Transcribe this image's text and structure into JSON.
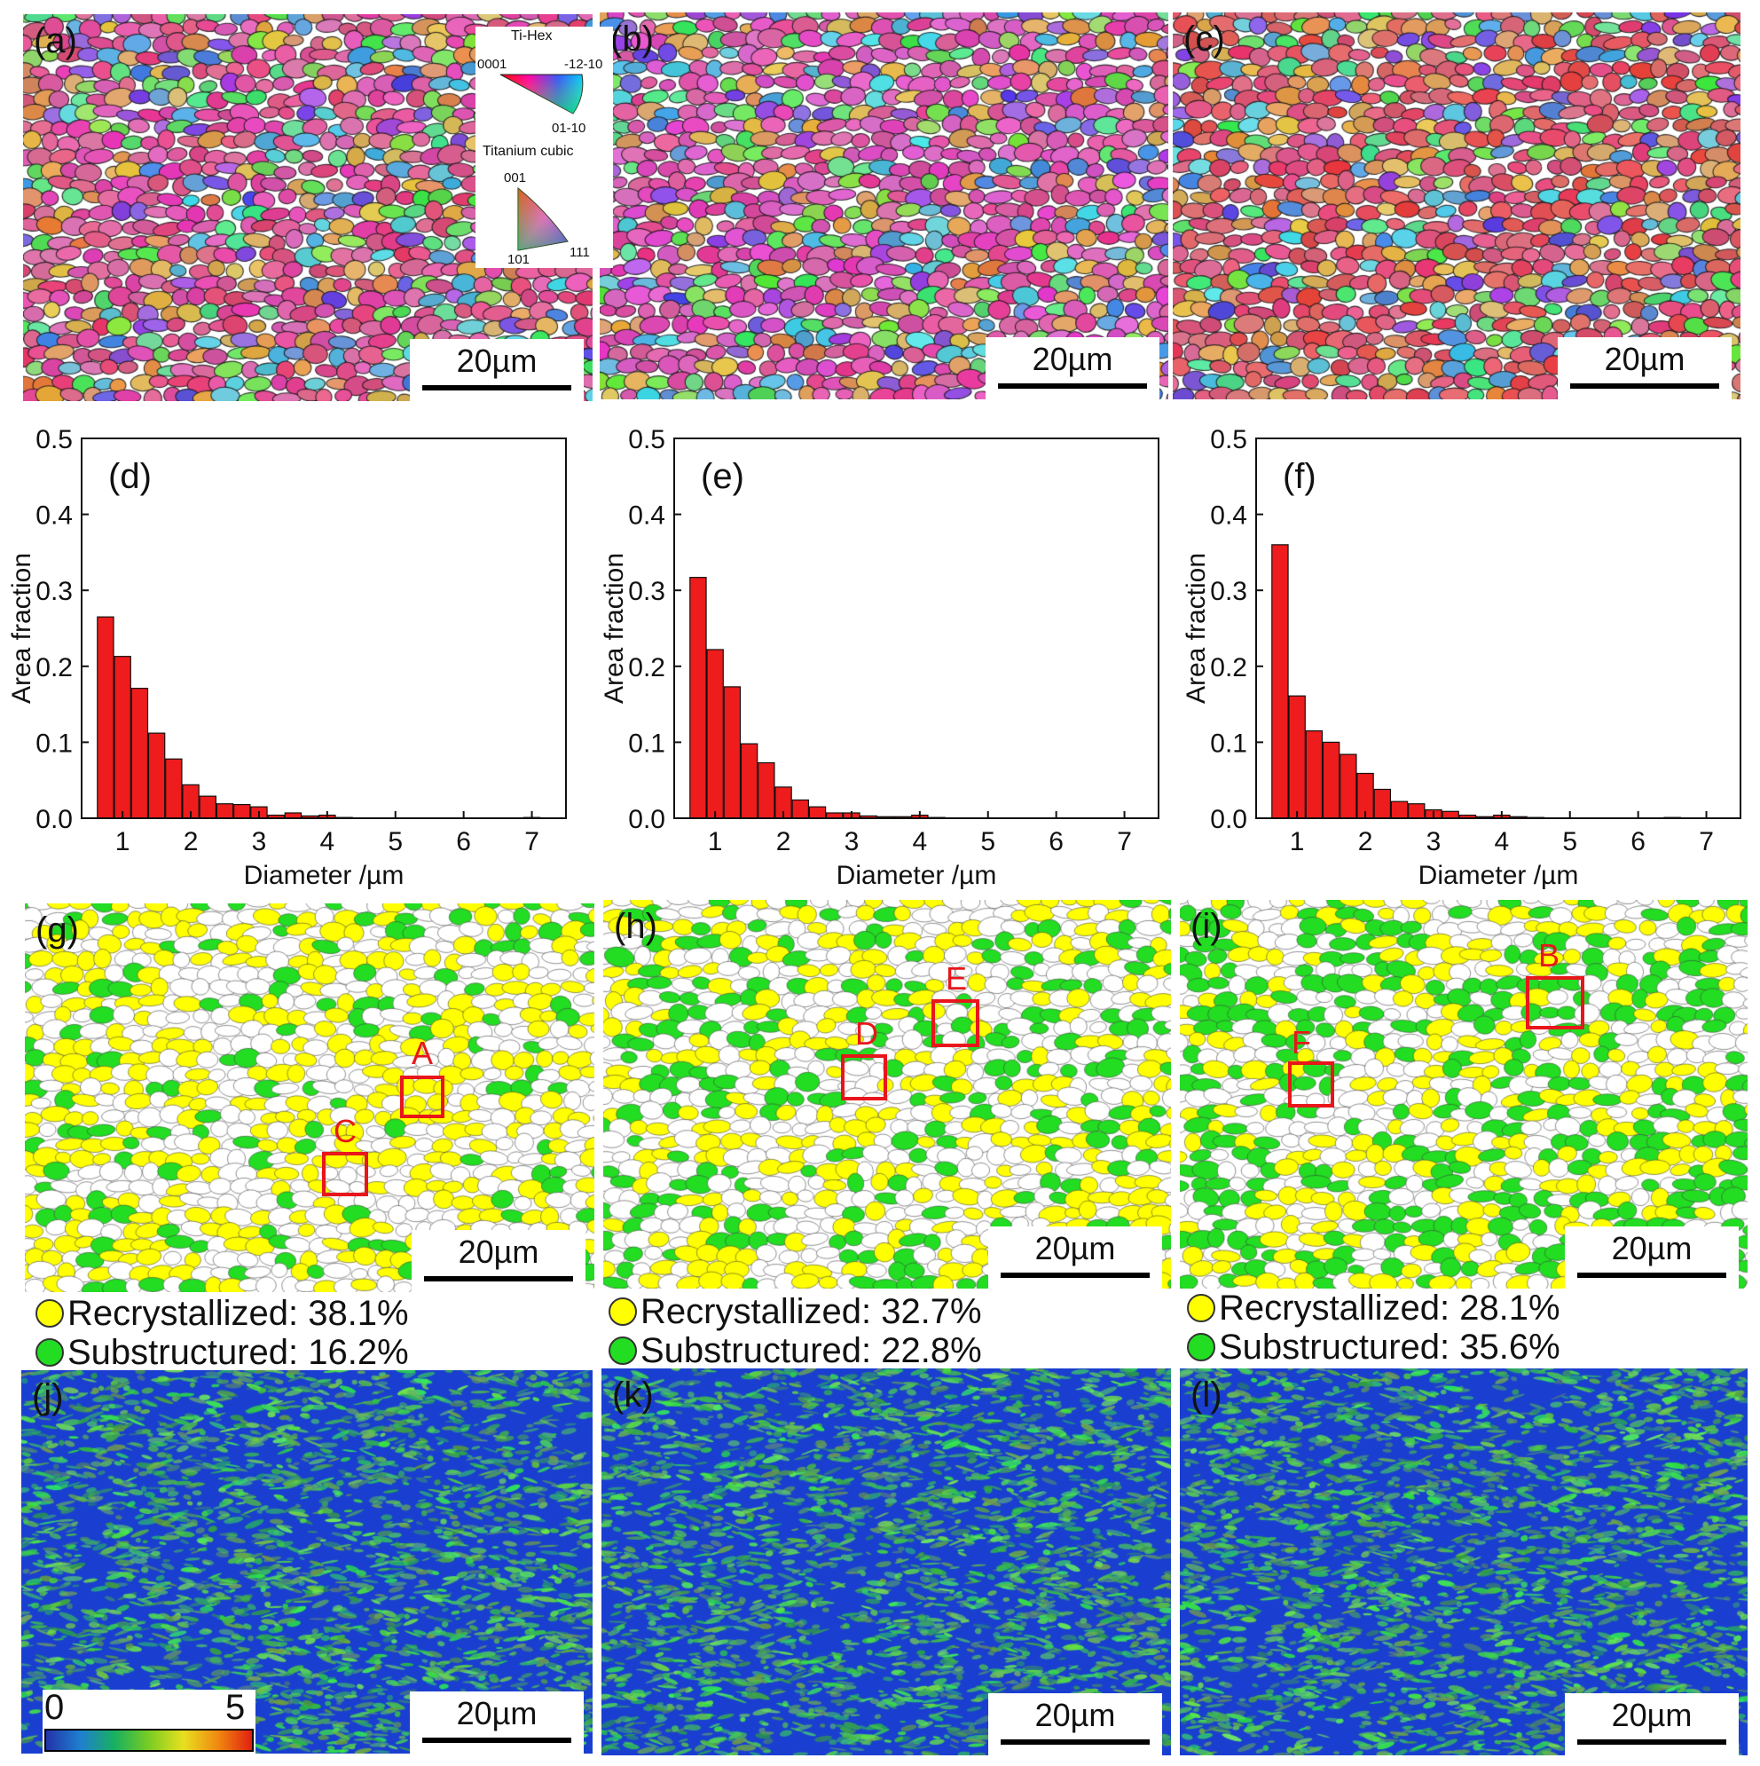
{
  "ipf_panels": [
    {
      "label": "(a)",
      "scalebar": "20µm",
      "hue": 330
    },
    {
      "label": "(b)",
      "scalebar": "20µm",
      "hue": 320
    },
    {
      "label": "(c)",
      "scalebar": "20µm",
      "hue": 350
    }
  ],
  "ipf_key": {
    "hex_title": "Ti-Hex",
    "hex_labels": [
      "0001",
      "-12-10",
      "01-10"
    ],
    "cubic_title": "Titanium cubic",
    "cubic_labels": [
      "001",
      "101",
      "111"
    ]
  },
  "chart_data": [
    {
      "type": "bar",
      "label": "(d)",
      "x": [
        0.75,
        1.0,
        1.25,
        1.5,
        1.75,
        2.0,
        2.25,
        2.5,
        2.75,
        3.0,
        3.25,
        3.5,
        3.75,
        4.0,
        4.25,
        4.5,
        4.75,
        5.0,
        5.25,
        5.5,
        5.75,
        6.0,
        6.25,
        6.5,
        6.75,
        7.0
      ],
      "values": [
        0.265,
        0.213,
        0.171,
        0.112,
        0.078,
        0.044,
        0.029,
        0.019,
        0.018,
        0.015,
        0.004,
        0.007,
        0.003,
        0.004,
        0.001,
        0.0,
        0.0,
        0.0,
        0.0,
        0.0,
        0.0,
        0.0,
        0.0,
        0.0,
        0.0,
        0.001
      ],
      "xlabel": "Diameter /µm",
      "ylabel": "Area fraction",
      "xlim": [
        0.4,
        7.5
      ],
      "ylim": [
        0,
        0.5
      ],
      "xticks": [
        "1",
        "2",
        "3",
        "4",
        "5",
        "6",
        "7"
      ],
      "yticks": [
        "0.0",
        "0.1",
        "0.2",
        "0.3",
        "0.4",
        "0.5"
      ]
    },
    {
      "type": "bar",
      "label": "(e)",
      "x": [
        0.75,
        1.0,
        1.25,
        1.5,
        1.75,
        2.0,
        2.25,
        2.5,
        2.75,
        3.0,
        3.25,
        3.5,
        3.75,
        4.0,
        4.25,
        4.5,
        4.75,
        5.0,
        5.25,
        5.5,
        5.75,
        6.0,
        6.25,
        6.5,
        6.75,
        7.0
      ],
      "values": [
        0.317,
        0.222,
        0.173,
        0.098,
        0.073,
        0.041,
        0.024,
        0.015,
        0.007,
        0.007,
        0.003,
        0.002,
        0.002,
        0.004,
        0.001,
        0.0,
        0.0,
        0.0,
        0.0,
        0.0,
        0.0,
        0.0,
        0.0,
        0.0,
        0.0,
        0.0
      ],
      "xlabel": "Diameter /µm",
      "ylabel": "Area fraction",
      "xlim": [
        0.4,
        7.5
      ],
      "ylim": [
        0,
        0.5
      ],
      "xticks": [
        "1",
        "2",
        "3",
        "4",
        "5",
        "6",
        "7"
      ],
      "yticks": [
        "0.0",
        "0.1",
        "0.2",
        "0.3",
        "0.4",
        "0.5"
      ]
    },
    {
      "type": "bar",
      "label": "(f)",
      "x": [
        0.75,
        1.0,
        1.25,
        1.5,
        1.75,
        2.0,
        2.25,
        2.5,
        2.75,
        3.0,
        3.25,
        3.5,
        3.75,
        4.0,
        4.25,
        4.5,
        4.75,
        5.0,
        5.25,
        5.5,
        5.75,
        6.0,
        6.25,
        6.5,
        6.75,
        7.0
      ],
      "values": [
        0.36,
        0.161,
        0.115,
        0.1,
        0.084,
        0.059,
        0.038,
        0.022,
        0.019,
        0.011,
        0.009,
        0.004,
        0.002,
        0.004,
        0.002,
        0.001,
        0.0,
        0.0,
        0.0,
        0.0,
        0.0,
        0.0,
        0.0,
        0.001,
        0.0,
        0.0
      ],
      "xlabel": "Diameter /µm",
      "ylabel": "Area fraction",
      "xlim": [
        0.4,
        7.5
      ],
      "ylim": [
        0,
        0.5
      ],
      "xticks": [
        "1",
        "2",
        "3",
        "4",
        "5",
        "6",
        "7"
      ],
      "yticks": [
        "0.0",
        "0.1",
        "0.2",
        "0.3",
        "0.4",
        "0.5"
      ]
    }
  ],
  "grain_panels": [
    {
      "label": "(g)",
      "scalebar": "20µm",
      "recrystallized": "Recrystallized: 38.1%",
      "substructured": "Substructured: 16.2%",
      "boxes": [
        "A",
        "C"
      ]
    },
    {
      "label": "(h)",
      "scalebar": "20µm",
      "recrystallized": "Recrystallized: 32.7%",
      "substructured": "Substructured: 22.8%",
      "boxes": [
        "E",
        "D"
      ]
    },
    {
      "label": "(i)",
      "scalebar": "20µm",
      "recrystallized": "Recrystallized: 28.1%",
      "substructured": "Substructured: 35.6%",
      "boxes": [
        "B",
        "F"
      ]
    }
  ],
  "kam_panels": [
    {
      "label": "(j)",
      "scalebar": "20µm"
    },
    {
      "label": "(k)",
      "scalebar": "20µm"
    },
    {
      "label": "(l)",
      "scalebar": "20µm"
    }
  ],
  "kam_colorbar": {
    "min": "0",
    "max": "5"
  },
  "colors": {
    "bar": "#ee1c1c",
    "recrystallized": "#ffff00",
    "substructured": "#22dd22",
    "box": "#e8161b",
    "kam_bg": "#1a3fd0",
    "kam_fg": "#38d070"
  }
}
